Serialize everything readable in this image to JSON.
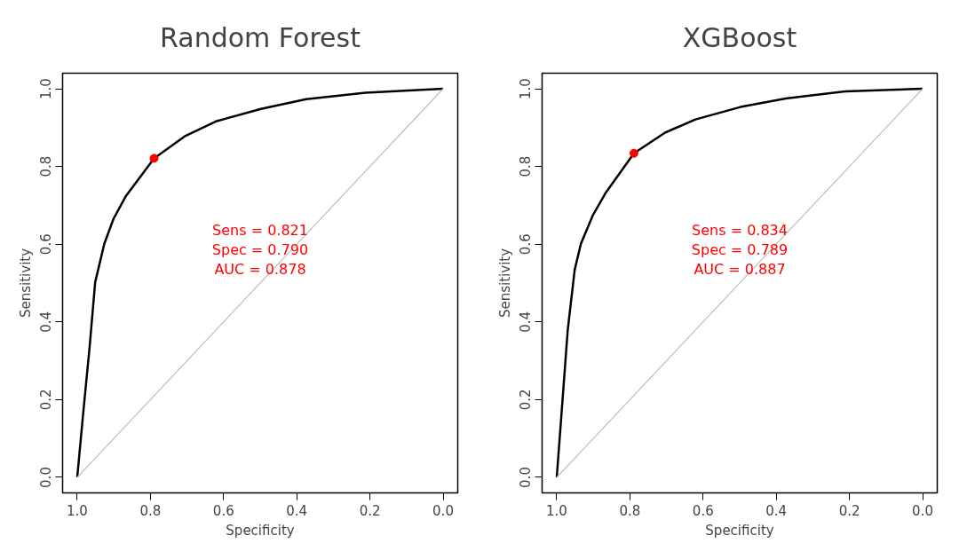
{
  "chart_data": [
    {
      "type": "line",
      "title": "Random Forest",
      "xlabel": "Specificity",
      "ylabel": "Sensitivity",
      "xlim": [
        1.04,
        -0.04
      ],
      "ylim": [
        -0.04,
        1.04
      ],
      "xticks": [
        {
          "value": 1,
          "label": "1.0"
        },
        {
          "value": 0.8,
          "label": "0.8"
        },
        {
          "value": 0.6,
          "label": "0.6"
        },
        {
          "value": 0.4,
          "label": "0.4"
        },
        {
          "value": 0.2,
          "label": "0.2"
        },
        {
          "value": 0,
          "label": "0.0"
        }
      ],
      "yticks": [
        {
          "value": 0,
          "label": "0.0"
        },
        {
          "value": 0.2,
          "label": "0.2"
        },
        {
          "value": 0.4,
          "label": "0.4"
        },
        {
          "value": 0.6,
          "label": "0.6"
        },
        {
          "value": 0.8,
          "label": "0.8"
        },
        {
          "value": 1,
          "label": "1.0"
        }
      ],
      "grid": false,
      "marker": "none",
      "line_style": "solid",
      "series": [
        {
          "color": "#000000",
          "x": [
            1.0,
            0.983,
            0.966,
            0.951,
            0.926,
            0.901,
            0.867,
            0.79,
            0.704,
            0.621,
            0.498,
            0.374,
            0.212,
            0.0
          ],
          "values": [
            0.0,
            0.172,
            0.337,
            0.502,
            0.601,
            0.665,
            0.724,
            0.821,
            0.879,
            0.916,
            0.948,
            0.973,
            0.99,
            1.0
          ]
        },
        {
          "color": "#bebebe",
          "x": [
            1.0,
            0.0
          ],
          "values": [
            0.0,
            1.0
          ]
        },
        {
          "type": "scatter",
          "marker": "circle",
          "color": "#ff0000",
          "x": [
            0.79
          ],
          "values": [
            0.821
          ]
        }
      ],
      "annotations": [
        "Sens = 0.821",
        "Spec = 0.790",
        "AUC = 0.878"
      ]
    },
    {
      "type": "line",
      "title": "XGBoost",
      "xlabel": "Specificity",
      "ylabel": "Sensitivity",
      "xlim": [
        1.04,
        -0.04
      ],
      "ylim": [
        -0.04,
        1.04
      ],
      "xticks": [
        {
          "value": 1,
          "label": "1.0"
        },
        {
          "value": 0.8,
          "label": "0.8"
        },
        {
          "value": 0.6,
          "label": "0.6"
        },
        {
          "value": 0.4,
          "label": "0.4"
        },
        {
          "value": 0.2,
          "label": "0.2"
        },
        {
          "value": 0,
          "label": "0.0"
        }
      ],
      "yticks": [
        {
          "value": 0,
          "label": "0.0"
        },
        {
          "value": 0.2,
          "label": "0.2"
        },
        {
          "value": 0.4,
          "label": "0.4"
        },
        {
          "value": 0.6,
          "label": "0.6"
        },
        {
          "value": 0.8,
          "label": "0.8"
        },
        {
          "value": 1,
          "label": "1.0"
        }
      ],
      "grid": false,
      "marker": "none",
      "line_style": "solid",
      "series": [
        {
          "color": "#000000",
          "x": [
            1.0,
            0.983,
            0.97,
            0.951,
            0.934,
            0.901,
            0.867,
            0.789,
            0.704,
            0.621,
            0.498,
            0.374,
            0.212,
            0.0
          ],
          "values": [
            0.0,
            0.214,
            0.379,
            0.534,
            0.601,
            0.675,
            0.731,
            0.834,
            0.887,
            0.921,
            0.953,
            0.975,
            0.993,
            1.0
          ]
        },
        {
          "color": "#bebebe",
          "x": [
            1.0,
            0.0
          ],
          "values": [
            0.0,
            1.0
          ]
        },
        {
          "type": "scatter",
          "marker": "circle",
          "color": "#ff0000",
          "x": [
            0.789
          ],
          "values": [
            0.834
          ]
        }
      ],
      "annotations": [
        "Sens = 0.834",
        "Spec = 0.789",
        "AUC = 0.887"
      ]
    }
  ]
}
